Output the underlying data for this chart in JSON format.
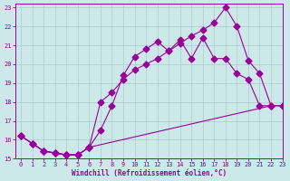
{
  "bg_color": "#cce8e8",
  "grid_color": "#aacccc",
  "line_color": "#990099",
  "xlim": [
    -0.5,
    23
  ],
  "ylim": [
    15,
    23.2
  ],
  "yticks": [
    15,
    16,
    17,
    18,
    19,
    20,
    21,
    22,
    23
  ],
  "xticks": [
    0,
    1,
    2,
    3,
    4,
    5,
    6,
    7,
    8,
    9,
    10,
    11,
    12,
    13,
    14,
    15,
    16,
    17,
    18,
    19,
    20,
    21,
    22,
    23
  ],
  "xlabel": "Windchill (Refroidissement éolien,°C)",
  "line1_x": [
    0,
    1,
    2,
    3,
    4,
    5,
    6,
    7,
    8,
    9,
    10,
    11,
    12,
    13,
    14,
    15,
    16,
    17,
    18,
    19,
    20,
    21,
    22
  ],
  "line1_y": [
    16.2,
    15.8,
    15.4,
    15.3,
    15.2,
    15.2,
    15.6,
    16.5,
    17.8,
    19.4,
    20.4,
    20.8,
    21.2,
    20.7,
    21.3,
    20.3,
    21.4,
    20.3,
    20.3,
    19.5,
    19.2,
    17.8,
    17.8
  ],
  "line2_x": [
    0,
    1,
    2,
    3,
    4,
    5,
    6,
    22,
    23
  ],
  "line2_y": [
    16.2,
    15.8,
    15.4,
    15.3,
    15.2,
    15.2,
    15.6,
    17.8,
    17.8
  ],
  "line3_x": [
    0,
    1,
    2,
    3,
    4,
    5,
    6,
    7,
    8,
    9,
    10,
    11,
    12,
    13,
    14,
    15,
    16,
    17,
    18,
    19,
    20,
    21,
    22,
    23
  ],
  "line3_y": [
    16.2,
    15.8,
    15.4,
    15.3,
    15.2,
    15.2,
    15.6,
    18.0,
    18.5,
    19.2,
    19.7,
    20.0,
    20.3,
    20.7,
    21.1,
    21.5,
    21.8,
    22.2,
    23.0,
    22.0,
    20.2,
    19.5,
    17.8,
    17.8
  ]
}
